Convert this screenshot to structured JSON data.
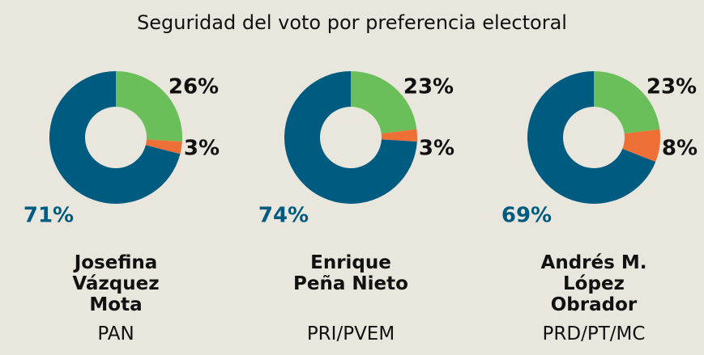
{
  "title": "Seguridad del voto por preferencia electoral",
  "chart_data": [
    {
      "type": "pie",
      "title": "Josefina Vázquez Mota",
      "subtitle": "PAN",
      "values": [
        26,
        3,
        71
      ],
      "value_labels": [
        "26%",
        "3%",
        "71%"
      ],
      "colors": [
        "#6abf5a",
        "#ee7037",
        "#005b80"
      ]
    },
    {
      "type": "pie",
      "title": "Enrique Peña Nieto",
      "subtitle": "PRI/PVEM",
      "values": [
        23,
        3,
        74
      ],
      "value_labels": [
        "23%",
        "3%",
        "74%"
      ],
      "colors": [
        "#6abf5a",
        "#ee7037",
        "#005b80"
      ]
    },
    {
      "type": "pie",
      "title": "Andrés M. López Obrador",
      "subtitle": "PRD/PT/MC",
      "values": [
        23,
        8,
        69
      ],
      "value_labels": [
        "23%",
        "8%",
        "69%"
      ],
      "colors": [
        "#6abf5a",
        "#ee7037",
        "#005b80"
      ]
    }
  ]
}
